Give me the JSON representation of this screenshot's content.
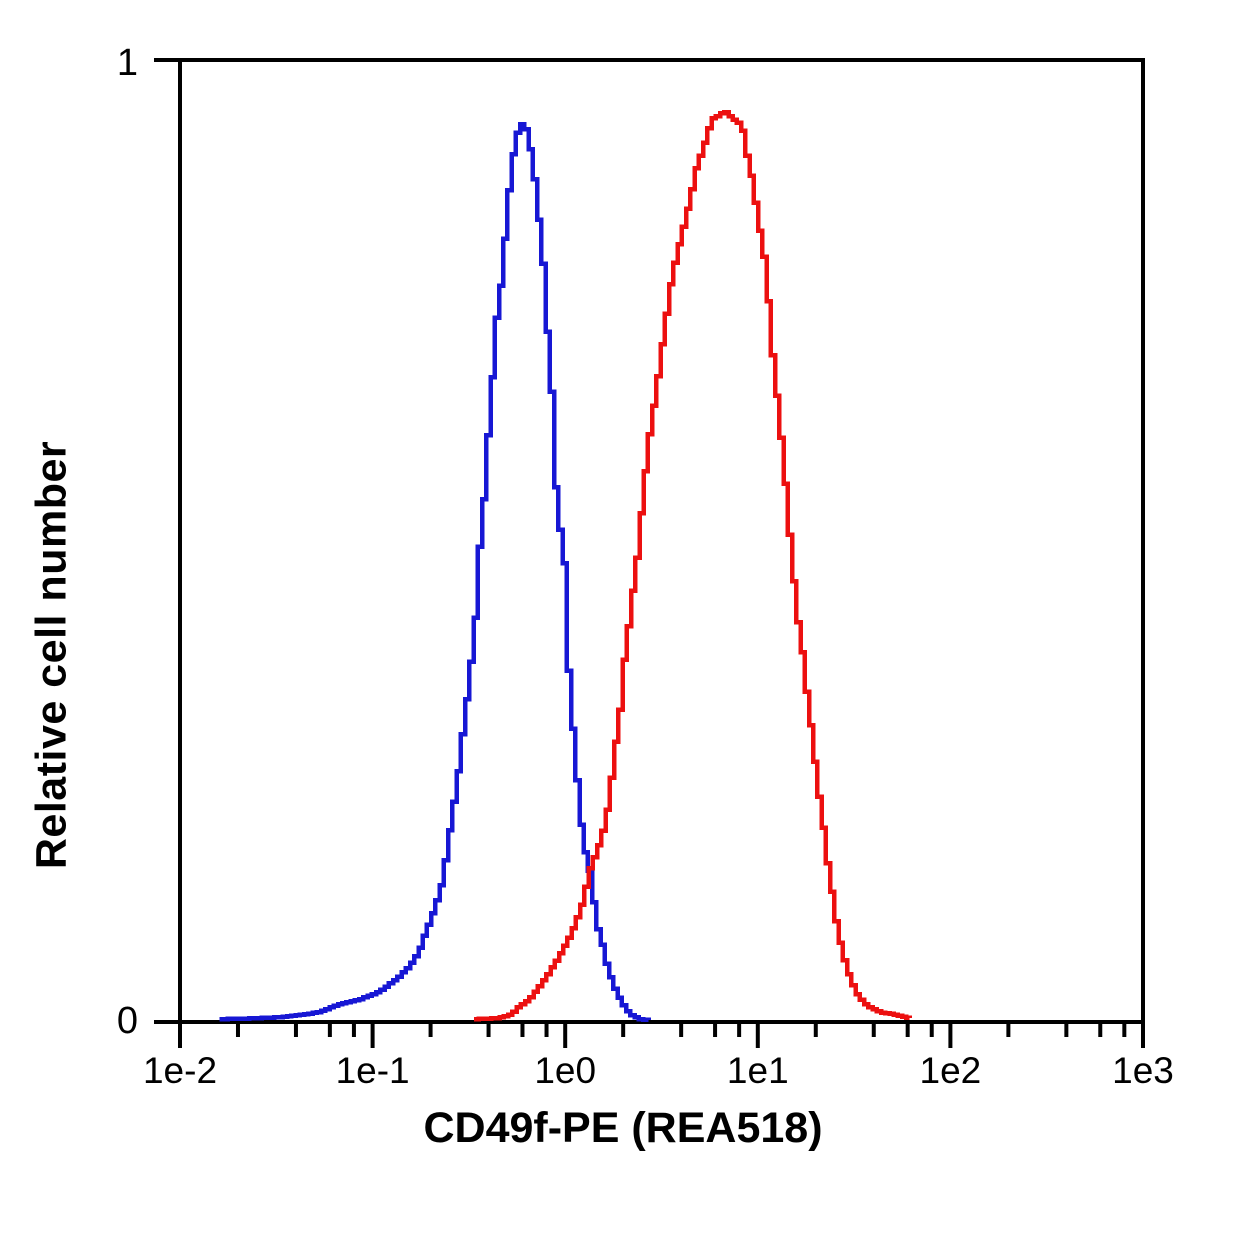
{
  "chart_data": {
    "type": "line",
    "subtype": "flow-cytometry-overlay-histogram",
    "title": "",
    "xlabel": "CD49f-PE (REA518)",
    "ylabel": "Relative cell number",
    "x_scale": "log",
    "xlim": [
      0.01,
      1000
    ],
    "ylim": [
      0,
      1
    ],
    "grid": false,
    "legend": "none",
    "x_ticks": [
      {
        "label": "1e-2",
        "value": 0.01
      },
      {
        "label": "1e-1",
        "value": 0.1
      },
      {
        "label": "1e0",
        "value": 1
      },
      {
        "label": "1e1",
        "value": 10
      },
      {
        "label": "1e2",
        "value": 100
      },
      {
        "label": "1e3",
        "value": 1000
      }
    ],
    "x_minor_tick_multiples": [
      2,
      4,
      6,
      8
    ],
    "y_ticks": [
      "0",
      "1"
    ],
    "y_tick_values": [
      0,
      1
    ],
    "colors": {
      "axis": "#000000",
      "background": "#ffffff",
      "blue_series": "#1717d4",
      "red_series": "#ec1010"
    },
    "series": [
      {
        "name": "blue",
        "color": "#1717d4",
        "peak_x": 0.59,
        "peak_y": 0.935,
        "points": [
          [
            0.016,
            0.003
          ],
          [
            0.025,
            0.004
          ],
          [
            0.032,
            0.005
          ],
          [
            0.04,
            0.007
          ],
          [
            0.051,
            0.01
          ],
          [
            0.065,
            0.018
          ],
          [
            0.083,
            0.023
          ],
          [
            0.105,
            0.031
          ],
          [
            0.129,
            0.044
          ],
          [
            0.151,
            0.057
          ],
          [
            0.17,
            0.073
          ],
          [
            0.187,
            0.096
          ],
          [
            0.206,
            0.118
          ],
          [
            0.227,
            0.148
          ],
          [
            0.247,
            0.2
          ],
          [
            0.271,
            0.255
          ],
          [
            0.291,
            0.309
          ],
          [
            0.313,
            0.361
          ],
          [
            0.336,
            0.425
          ],
          [
            0.348,
            0.48
          ],
          [
            0.357,
            0.515
          ],
          [
            0.379,
            0.563
          ],
          [
            0.387,
            0.602
          ],
          [
            0.398,
            0.643
          ],
          [
            0.417,
            0.688
          ],
          [
            0.427,
            0.719
          ],
          [
            0.438,
            0.758
          ],
          [
            0.464,
            0.771
          ],
          [
            0.48,
            0.826
          ],
          [
            0.51,
            0.88
          ],
          [
            0.542,
            0.92
          ],
          [
            0.57,
            0.93
          ],
          [
            0.591,
            0.935
          ],
          [
            0.611,
            0.93
          ],
          [
            0.641,
            0.91
          ],
          [
            0.664,
            0.896
          ],
          [
            0.688,
            0.865
          ],
          [
            0.722,
            0.826
          ],
          [
            0.749,
            0.792
          ],
          [
            0.785,
            0.747
          ],
          [
            0.794,
            0.702
          ],
          [
            0.833,
            0.654
          ],
          [
            0.863,
            0.605
          ],
          [
            0.875,
            0.556
          ],
          [
            0.929,
            0.504
          ],
          [
            0.986,
            0.465
          ],
          [
            0.992,
            0.415
          ],
          [
            1.014,
            0.371
          ],
          [
            1.051,
            0.327
          ],
          [
            1.088,
            0.288
          ],
          [
            1.139,
            0.241
          ],
          [
            1.208,
            0.189
          ],
          [
            1.311,
            0.158
          ],
          [
            1.39,
            0.12
          ],
          [
            1.441,
            0.099
          ],
          [
            1.529,
            0.08
          ],
          [
            1.623,
            0.057
          ],
          [
            1.763,
            0.036
          ],
          [
            1.893,
            0.023
          ],
          [
            2.046,
            0.012
          ],
          [
            2.212,
            0.006
          ],
          [
            2.414,
            0.003
          ],
          [
            2.71,
            0.002
          ]
        ]
      },
      {
        "name": "red",
        "color": "#ec1010",
        "peak_x": 6.8,
        "peak_y": 0.948,
        "points": [
          [
            0.337,
            0.003
          ],
          [
            0.444,
            0.004
          ],
          [
            0.517,
            0.008
          ],
          [
            0.562,
            0.016
          ],
          [
            0.633,
            0.023
          ],
          [
            0.714,
            0.036
          ],
          [
            0.805,
            0.051
          ],
          [
            0.908,
            0.068
          ],
          [
            1.014,
            0.085
          ],
          [
            1.11,
            0.103
          ],
          [
            1.19,
            0.12
          ],
          [
            1.247,
            0.137
          ],
          [
            1.311,
            0.158
          ],
          [
            1.441,
            0.179
          ],
          [
            1.495,
            0.19
          ],
          [
            1.586,
            0.207
          ],
          [
            1.682,
            0.244
          ],
          [
            1.784,
            0.288
          ],
          [
            1.893,
            0.327
          ],
          [
            1.983,
            0.376
          ],
          [
            2.128,
            0.425
          ],
          [
            2.227,
            0.459
          ],
          [
            2.304,
            0.48
          ],
          [
            2.502,
            0.556
          ],
          [
            2.685,
            0.61
          ],
          [
            2.925,
            0.66
          ],
          [
            3.206,
            0.72
          ],
          [
            3.483,
            0.77
          ],
          [
            3.693,
            0.795
          ],
          [
            3.917,
            0.816
          ],
          [
            4.153,
            0.837
          ],
          [
            4.404,
            0.86
          ],
          [
            4.67,
            0.886
          ],
          [
            4.952,
            0.901
          ],
          [
            5.251,
            0.917
          ],
          [
            5.568,
            0.935
          ],
          [
            5.904,
            0.943
          ],
          [
            6.186,
            0.94
          ],
          [
            6.481,
            0.948
          ],
          [
            7.18,
            0.94
          ],
          [
            7.8,
            0.935
          ],
          [
            8.28,
            0.925
          ],
          [
            8.57,
            0.903
          ],
          [
            9.0,
            0.884
          ],
          [
            9.55,
            0.851
          ],
          [
            9.91,
            0.829
          ],
          [
            10.5,
            0.8
          ],
          [
            10.9,
            0.771
          ],
          [
            11.5,
            0.709
          ],
          [
            11.9,
            0.675
          ],
          [
            12.5,
            0.639
          ],
          [
            13.1,
            0.595
          ],
          [
            13.8,
            0.546
          ],
          [
            14.4,
            0.5
          ],
          [
            15.2,
            0.449
          ],
          [
            15.7,
            0.421
          ],
          [
            16.6,
            0.387
          ],
          [
            17.2,
            0.359
          ],
          [
            17.8,
            0.33
          ],
          [
            18.7,
            0.3
          ],
          [
            19.4,
            0.27
          ],
          [
            20.1,
            0.243
          ],
          [
            21.1,
            0.215
          ],
          [
            21.9,
            0.186
          ],
          [
            22.8,
            0.158
          ],
          [
            23.9,
            0.132
          ],
          [
            24.8,
            0.108
          ],
          [
            26.3,
            0.082
          ],
          [
            27.9,
            0.061
          ],
          [
            29.7,
            0.044
          ],
          [
            32.3,
            0.028
          ],
          [
            34.8,
            0.02
          ],
          [
            37.8,
            0.015
          ],
          [
            42.8,
            0.01
          ],
          [
            49.9,
            0.008
          ],
          [
            54.4,
            0.006
          ],
          [
            61.3,
            0.004
          ]
        ]
      }
    ]
  }
}
